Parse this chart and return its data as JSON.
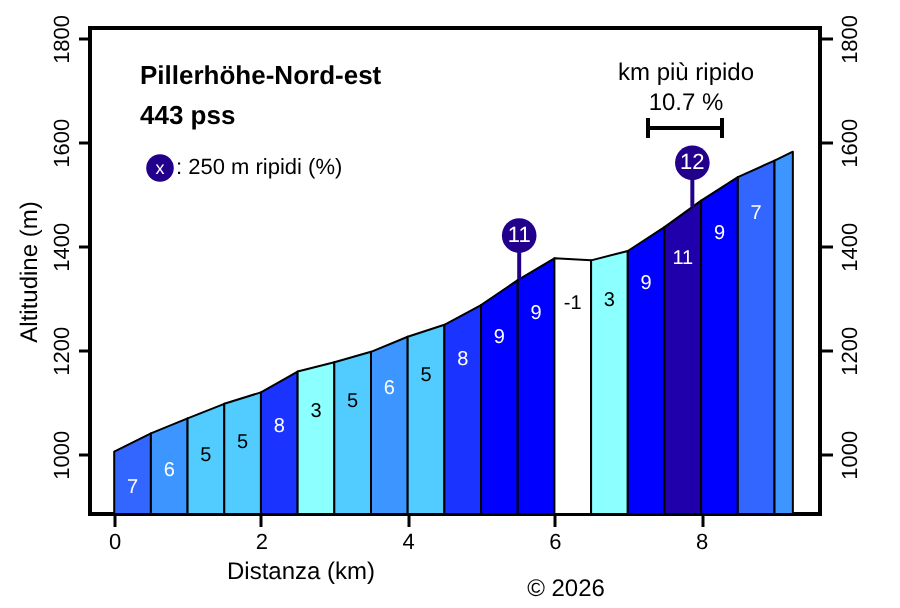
{
  "chart_data": {
    "type": "area",
    "title": "Pillerhöhe-Nord-est",
    "subtitle": "443 pss",
    "xlabel": "Distanza (km)",
    "ylabel": "Altitudine (m)",
    "xlim": [
      -0.33,
      9.62
    ],
    "xticks": [
      0,
      2,
      4,
      6,
      8
    ],
    "ylim": [
      885,
      1820
    ],
    "yticks": [
      1000,
      1200,
      1400,
      1600,
      1800
    ],
    "y2lim": [
      885,
      1820
    ],
    "y2ticks": [
      1000,
      1200,
      1400,
      1600,
      1800
    ],
    "grid": false,
    "series": [
      {
        "color": "#3366ff",
        "x": [
          0,
          0.5
        ],
        "values": [
          1005,
          1040
        ]
      },
      {
        "color": "#3d95ff",
        "x": [
          0.5,
          1
        ],
        "values": [
          1040,
          1069
        ]
      },
      {
        "color": "#52ccff",
        "x": [
          1,
          1.5
        ],
        "values": [
          1069,
          1097
        ]
      },
      {
        "color": "#52ccff",
        "x": [
          1.5,
          2
        ],
        "values": [
          1097,
          1119
        ]
      },
      {
        "color": "#1a33ff",
        "x": [
          2,
          2.5
        ],
        "values": [
          1119,
          1159
        ]
      },
      {
        "color": "#8cffff",
        "x": [
          2.5,
          3
        ],
        "values": [
          1159,
          1177
        ]
      },
      {
        "color": "#52ccff",
        "x": [
          3,
          3.5
        ],
        "values": [
          1177,
          1197
        ]
      },
      {
        "color": "#3d95ff",
        "x": [
          3.5,
          4
        ],
        "values": [
          1197,
          1226
        ]
      },
      {
        "color": "#52ccff",
        "x": [
          4,
          4.5
        ],
        "values": [
          1226,
          1249
        ]
      },
      {
        "color": "#1a33ff",
        "x": [
          4.5,
          5
        ],
        "values": [
          1249,
          1287
        ]
      },
      {
        "color": "#0000ff",
        "x": [
          5,
          5.5
        ],
        "values": [
          1287,
          1335
        ]
      },
      {
        "color": "#0000ff",
        "x": [
          5.5,
          6
        ],
        "values": [
          1335,
          1377
        ]
      },
      {
        "color": "#ffffff",
        "x": [
          6,
          6.5
        ],
        "values": [
          1377,
          1373
        ]
      },
      {
        "color": "#8cffff",
        "x": [
          6.5,
          7
        ],
        "values": [
          1373,
          1391
        ]
      },
      {
        "color": "#0000ff",
        "x": [
          7,
          7.5
        ],
        "values": [
          1391,
          1437
        ]
      },
      {
        "color": "#1f00aa",
        "x": [
          7.5,
          8
        ],
        "values": [
          1437,
          1488
        ]
      },
      {
        "color": "#0000ff",
        "x": [
          8,
          8.5
        ],
        "values": [
          1488,
          1533
        ]
      },
      {
        "color": "#3366ff",
        "x": [
          8.5,
          9
        ],
        "values": [
          1533,
          1565
        ]
      },
      {
        "color": "#3d95ff",
        "x": [
          9,
          9.25
        ],
        "values": [
          1565,
          1582
        ]
      }
    ],
    "annotations": [
      "x",
      ": 250 m ripidi (%)",
      "km più ripido",
      "© 2026",
      "10.7 %",
      {
        "text": "11",
        "x": 5.52,
        "y": 1336
      },
      {
        "text": "12",
        "x": 7.88,
        "y": 1476
      },
      "7",
      "6",
      "5",
      "5",
      "8",
      "3",
      "5",
      "6",
      "5",
      "8",
      "9",
      "9",
      "-1",
      "3",
      "9",
      "11",
      "9",
      "7"
    ]
  }
}
